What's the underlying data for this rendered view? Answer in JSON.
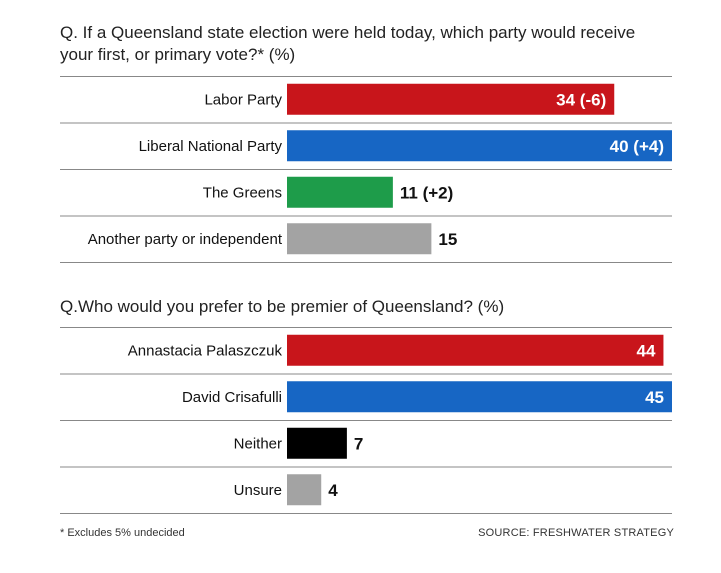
{
  "footnote": "* Excludes 5% undecided",
  "source": "SOURCE: FRESHWATER STRATEGY",
  "chart_data": [
    {
      "type": "bar",
      "orientation": "horizontal",
      "title": "Q. If a Queensland state election were held today, which party would receive your first, or primary vote?* (%)",
      "categories": [
        "Labor Party",
        "Liberal National Party",
        "The Greens",
        "Another party or independent"
      ],
      "values": [
        34,
        40,
        11,
        15
      ],
      "labels": [
        "34 (-6)",
        "40 (+4)",
        "11 (+2)",
        "15"
      ],
      "colors": [
        "#c8151b",
        "#1766c4",
        "#1e9c4a",
        "#a3a3a3"
      ],
      "label_inside": [
        true,
        true,
        false,
        false
      ],
      "xlim": [
        0,
        40
      ]
    },
    {
      "type": "bar",
      "orientation": "horizontal",
      "title": "Q.Who would you prefer to be premier of Queensland? (%)",
      "categories": [
        "Annastacia Palaszczuk",
        "David Crisafulli",
        "Neither",
        "Unsure"
      ],
      "values": [
        44,
        45,
        7,
        4
      ],
      "labels": [
        "44",
        "45",
        "7",
        "4"
      ],
      "colors": [
        "#c8151b",
        "#1766c4",
        "#000000",
        "#a3a3a3"
      ],
      "label_inside": [
        true,
        true,
        false,
        false
      ],
      "xlim": [
        0,
        45
      ]
    }
  ]
}
